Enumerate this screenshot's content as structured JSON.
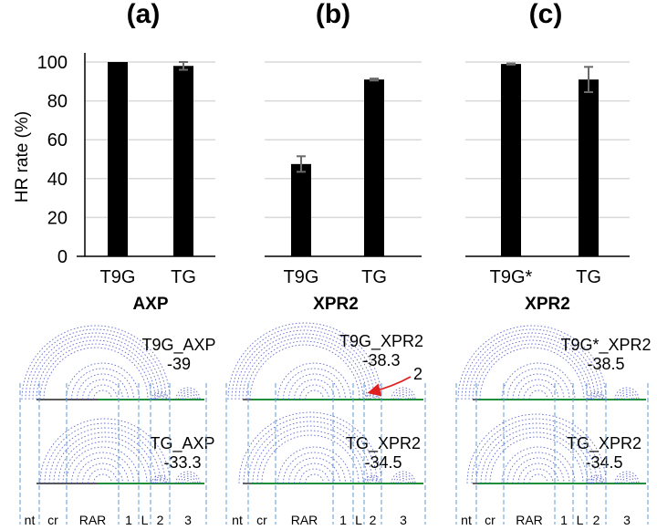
{
  "chart_data": [
    {
      "type": "bar",
      "panel": "(a)",
      "categories": [
        "T9G",
        "TG"
      ],
      "values": [
        100,
        98
      ],
      "errors": [
        0,
        2
      ],
      "xlabel": "AXP",
      "ylabel": "HR rate (%)",
      "ylim": [
        0,
        100
      ],
      "yticks": [
        "0",
        "20",
        "40",
        "60",
        "80",
        "100"
      ],
      "grid": true
    },
    {
      "type": "bar",
      "panel": "(b)",
      "categories": [
        "T9G",
        "TG"
      ],
      "values": [
        47.5,
        91
      ],
      "errors": [
        4,
        0.5
      ],
      "xlabel": "XPR2",
      "ylim": [
        0,
        100
      ],
      "grid": true
    },
    {
      "type": "bar",
      "panel": "(c)",
      "categories": [
        "T9G*",
        "TG"
      ],
      "values": [
        99,
        91
      ],
      "errors": [
        0.3,
        6.5
      ],
      "xlabel": "XPR2",
      "ylim": [
        0,
        100
      ],
      "grid": true
    }
  ],
  "structures": [
    {
      "segments": [
        "nt",
        "cr",
        "RAR",
        "1",
        "L",
        "2",
        "3"
      ],
      "top": {
        "name": "T9G_AXP",
        "energy": "-39"
      },
      "bottom": {
        "name": "TG_AXP",
        "energy": "-33.3"
      }
    },
    {
      "segments": [
        "nt",
        "cr",
        "RAR",
        "1",
        "L",
        "2",
        "3"
      ],
      "top": {
        "name": "T9G_XPR2",
        "energy": "-38.3"
      },
      "bottom": {
        "name": "TG_XPR2",
        "energy": "-34.5"
      },
      "annotation": "2"
    },
    {
      "segments": [
        "nt",
        "cr",
        "RAR",
        "1",
        "L",
        "2",
        "3"
      ],
      "top": {
        "name": "T9G*_XPR2",
        "energy": "-38.5"
      },
      "bottom": {
        "name": "TG_XPR2",
        "energy": "-34.5"
      }
    }
  ],
  "colors": {
    "bar": "#000000",
    "arc": "#4a55c8",
    "sequence": "#1f8f3a",
    "divider": "#5b9bd5",
    "arrow": "#e02020"
  }
}
